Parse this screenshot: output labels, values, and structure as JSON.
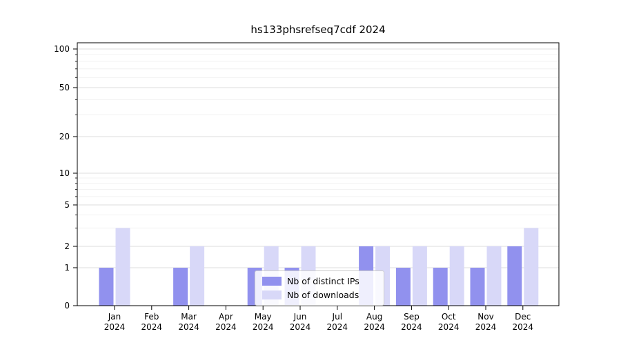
{
  "chart_data": {
    "type": "bar",
    "title": "hs133phsrefseq7cdf 2024",
    "categories": [
      "Jan",
      "Feb",
      "Mar",
      "Apr",
      "May",
      "Jun",
      "Jul",
      "Aug",
      "Sep",
      "Oct",
      "Nov",
      "Dec"
    ],
    "x_year": "2024",
    "series": [
      {
        "name": "Nb of distinct IPs",
        "color": "#9191ee",
        "values": [
          1,
          0,
          1,
          0,
          1,
          1,
          0,
          2,
          1,
          1,
          1,
          2
        ]
      },
      {
        "name": "Nb of downloads",
        "color": "#d8d8f8",
        "values": [
          3,
          0,
          2,
          0,
          2,
          2,
          0,
          2,
          2,
          2,
          2,
          3
        ]
      }
    ],
    "yaxis": {
      "scale": "symlog",
      "ticks": [
        0,
        1,
        2,
        5,
        10,
        20,
        50,
        100
      ],
      "minor_ticks": [
        3,
        4,
        6,
        7,
        8,
        9,
        30,
        40,
        60,
        70,
        80,
        90
      ],
      "ylim": [
        0,
        115
      ]
    },
    "grid": true,
    "legend": {
      "position": "lower center"
    }
  }
}
